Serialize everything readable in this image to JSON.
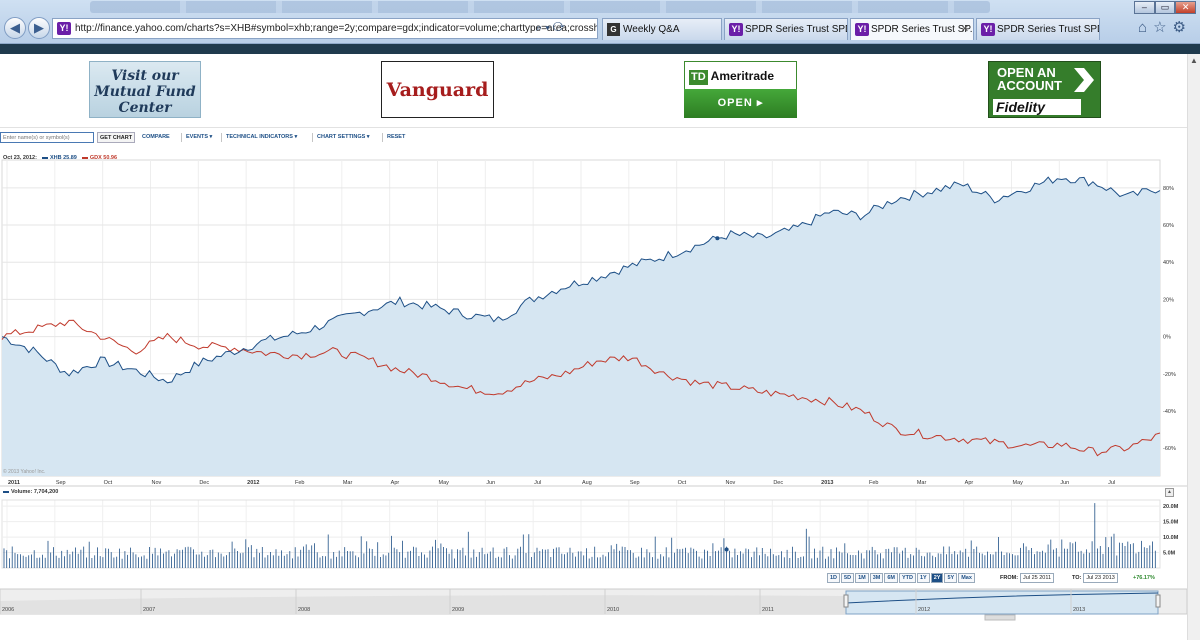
{
  "browser": {
    "url": "http://finance.yahoo.com/charts?s=XHB#symbol=xhb;range=2y;compare=gdx;indicator=volume;charttype=area;crosshair=o",
    "tabs": [
      {
        "label": "Weekly Q&A",
        "icon": "g-favicon"
      },
      {
        "label": "SPDR Series Trust SPDR...",
        "icon": "yahoo-favicon"
      },
      {
        "label": "SPDR Series Trust SP...",
        "icon": "yahoo-favicon",
        "active": true
      },
      {
        "label": "SPDR Series Trust SPDR...",
        "icon": "yahoo-favicon"
      }
    ],
    "yahoo_glyph": "Y!",
    "g_glyph": "G",
    "close_glyph": "✕"
  },
  "ads": {
    "mutual_fund": "Visit our Mutual Fund Center",
    "vanguard": "Vanguard",
    "td_box": "TD",
    "td_name": "Ameritrade",
    "td_open": "OPEN ▸",
    "fidelity_line1": "OPEN AN",
    "fidelity_line2": "ACCOUNT",
    "fidelity_brand": "Fidelity"
  },
  "toolbar": {
    "symbol_placeholder": "Enter name(s) or symbol(s)",
    "get_chart": "GET CHART",
    "compare": "COMPARE",
    "events": "EVENTS ▾",
    "technical": "TECHNICAL INDICATORS ▾",
    "settings": "CHART SETTINGS ▾",
    "reset": "RESET"
  },
  "legend": {
    "date": "Oct 23, 2012:",
    "xhb": "XHB 25.89",
    "gdx": "GDX 50.96"
  },
  "colors": {
    "xhb": "#1d4f86",
    "gdx": "#c0392b",
    "area": "#d6e6f2"
  },
  "copyright": "© 2013 Yahoo! Inc.",
  "volume_label": "Volume: 7,704,200",
  "range_buttons": [
    "1D",
    "5D",
    "1M",
    "3M",
    "6M",
    "YTD",
    "1Y",
    "2Y",
    "5Y",
    "Max"
  ],
  "selected_range": "2Y",
  "from_label": "FROM:",
  "from_date": "Jul 25 2011",
  "to_label": "TO:",
  "to_date": "Jul 23 2013",
  "change": "+76.17%",
  "chart_data": {
    "type": "line",
    "x_tick_labels": [
      "2011",
      "Sep",
      "Oct",
      "Nov",
      "Dec",
      "2012",
      "Feb",
      "Mar",
      "Apr",
      "May",
      "Jun",
      "Jul",
      "Aug",
      "Sep",
      "Oct",
      "Nov",
      "Dec",
      "2013",
      "Feb",
      "Mar",
      "Apr",
      "May",
      "Jun",
      "Jul"
    ],
    "y_tick_labels": [
      "80%",
      "60%",
      "40%",
      "20%",
      "0%",
      "-20%",
      "-40%",
      "-60%"
    ],
    "ylim": [
      -75,
      95
    ],
    "series": [
      {
        "name": "XHB",
        "values": [
          0,
          -8,
          -20,
          -13,
          -18,
          -24,
          -14,
          -8,
          -2,
          2,
          8,
          14,
          19,
          16,
          12,
          9,
          20,
          27,
          32,
          38,
          43,
          49,
          55,
          53,
          58,
          67,
          65,
          74,
          78,
          82,
          74,
          80,
          86,
          83,
          75,
          80
        ]
      },
      {
        "name": "GDX",
        "values": [
          0,
          4,
          8,
          0,
          -8,
          0,
          -5,
          -6,
          -9,
          -10,
          -8,
          -12,
          -18,
          -22,
          -28,
          -30,
          -24,
          -20,
          -13,
          -11,
          -20,
          -25,
          -27,
          -30,
          -32,
          -35,
          -40,
          -50,
          -53,
          -55,
          -57,
          -59,
          -58,
          -62,
          -60,
          -53
        ]
      }
    ],
    "volume": {
      "y_tick_labels": [
        "20.0M",
        "15.0M",
        "10.0M",
        "5.0M"
      ],
      "ylim": [
        0,
        22
      ]
    },
    "navigator_years": [
      "2006",
      "2007",
      "2008",
      "2009",
      "2010",
      "2011",
      "2012",
      "2013"
    ]
  }
}
